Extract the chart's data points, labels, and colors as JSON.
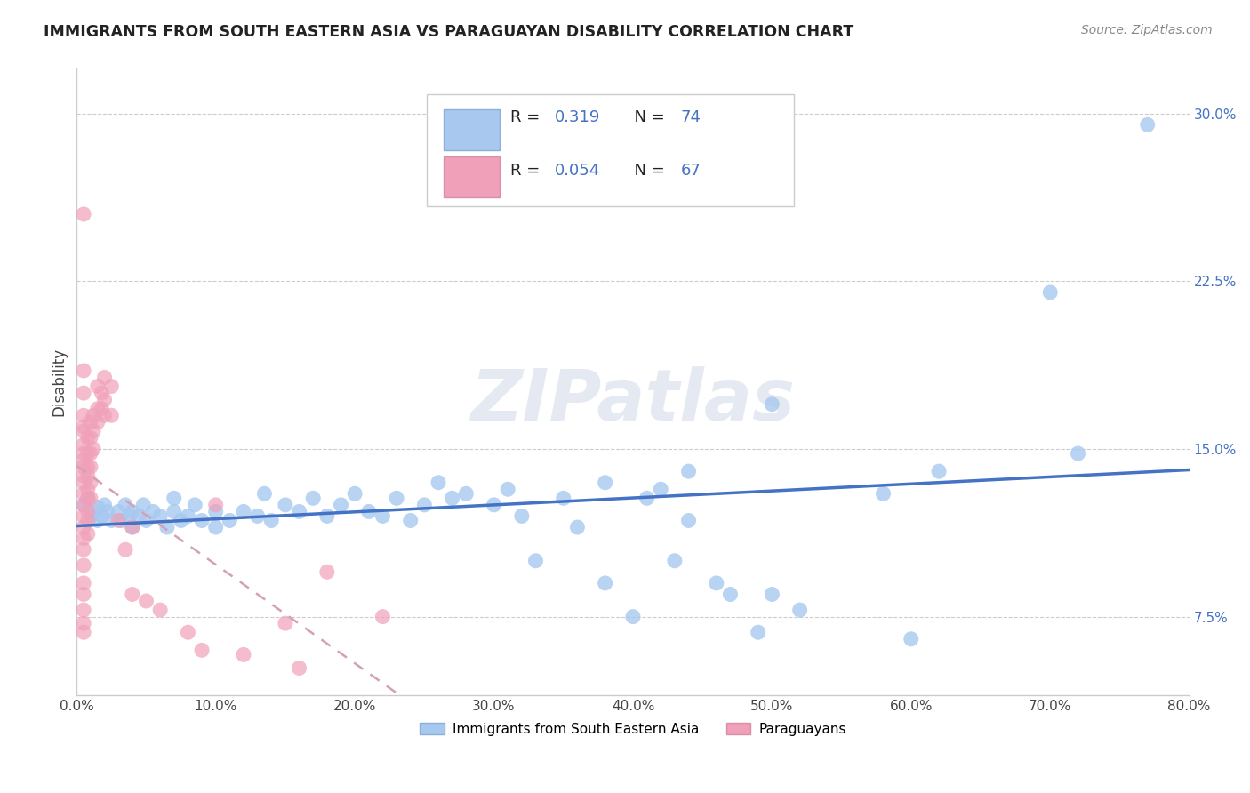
{
  "title": "IMMIGRANTS FROM SOUTH EASTERN ASIA VS PARAGUAYAN DISABILITY CORRELATION CHART",
  "source": "Source: ZipAtlas.com",
  "ylabel": "Disability",
  "xlim": [
    0.0,
    0.8
  ],
  "ylim": [
    0.04,
    0.32
  ],
  "xtick_vals": [
    0.0,
    0.1,
    0.2,
    0.3,
    0.4,
    0.5,
    0.6,
    0.7,
    0.8
  ],
  "xtick_labels": [
    "0.0%",
    "10.0%",
    "20.0%",
    "30.0%",
    "40.0%",
    "50.0%",
    "60.0%",
    "70.0%",
    "80.0%"
  ],
  "ytick_vals": [
    0.075,
    0.15,
    0.225,
    0.3
  ],
  "ytick_labels": [
    "7.5%",
    "15.0%",
    "22.5%",
    "30.0%"
  ],
  "grid_color": "#cccccc",
  "background_color": "#ffffff",
  "watermark": "ZIPatlas",
  "blue_R": 0.319,
  "blue_N": 74,
  "pink_R": 0.054,
  "pink_N": 67,
  "blue_scatter": [
    [
      0.005,
      0.125
    ],
    [
      0.008,
      0.128
    ],
    [
      0.01,
      0.12
    ],
    [
      0.012,
      0.122
    ],
    [
      0.015,
      0.118
    ],
    [
      0.015,
      0.124
    ],
    [
      0.018,
      0.12
    ],
    [
      0.02,
      0.125
    ],
    [
      0.022,
      0.122
    ],
    [
      0.025,
      0.118
    ],
    [
      0.03,
      0.122
    ],
    [
      0.032,
      0.118
    ],
    [
      0.035,
      0.125
    ],
    [
      0.038,
      0.12
    ],
    [
      0.04,
      0.122
    ],
    [
      0.04,
      0.115
    ],
    [
      0.045,
      0.12
    ],
    [
      0.048,
      0.125
    ],
    [
      0.05,
      0.118
    ],
    [
      0.055,
      0.122
    ],
    [
      0.06,
      0.12
    ],
    [
      0.065,
      0.115
    ],
    [
      0.07,
      0.122
    ],
    [
      0.07,
      0.128
    ],
    [
      0.075,
      0.118
    ],
    [
      0.08,
      0.12
    ],
    [
      0.085,
      0.125
    ],
    [
      0.09,
      0.118
    ],
    [
      0.1,
      0.122
    ],
    [
      0.1,
      0.115
    ],
    [
      0.11,
      0.118
    ],
    [
      0.12,
      0.122
    ],
    [
      0.13,
      0.12
    ],
    [
      0.135,
      0.13
    ],
    [
      0.14,
      0.118
    ],
    [
      0.15,
      0.125
    ],
    [
      0.16,
      0.122
    ],
    [
      0.17,
      0.128
    ],
    [
      0.18,
      0.12
    ],
    [
      0.19,
      0.125
    ],
    [
      0.2,
      0.13
    ],
    [
      0.21,
      0.122
    ],
    [
      0.22,
      0.12
    ],
    [
      0.23,
      0.128
    ],
    [
      0.24,
      0.118
    ],
    [
      0.25,
      0.125
    ],
    [
      0.26,
      0.135
    ],
    [
      0.27,
      0.128
    ],
    [
      0.28,
      0.13
    ],
    [
      0.3,
      0.125
    ],
    [
      0.31,
      0.132
    ],
    [
      0.32,
      0.12
    ],
    [
      0.33,
      0.1
    ],
    [
      0.35,
      0.128
    ],
    [
      0.36,
      0.115
    ],
    [
      0.38,
      0.135
    ],
    [
      0.38,
      0.09
    ],
    [
      0.4,
      0.075
    ],
    [
      0.41,
      0.128
    ],
    [
      0.42,
      0.132
    ],
    [
      0.43,
      0.1
    ],
    [
      0.44,
      0.14
    ],
    [
      0.44,
      0.118
    ],
    [
      0.46,
      0.09
    ],
    [
      0.47,
      0.085
    ],
    [
      0.49,
      0.068
    ],
    [
      0.5,
      0.17
    ],
    [
      0.5,
      0.085
    ],
    [
      0.52,
      0.078
    ],
    [
      0.58,
      0.13
    ],
    [
      0.6,
      0.065
    ],
    [
      0.62,
      0.14
    ],
    [
      0.7,
      0.22
    ],
    [
      0.72,
      0.148
    ],
    [
      0.77,
      0.295
    ]
  ],
  "pink_scatter": [
    [
      0.005,
      0.255
    ],
    [
      0.005,
      0.185
    ],
    [
      0.005,
      0.175
    ],
    [
      0.005,
      0.165
    ],
    [
      0.005,
      0.16
    ],
    [
      0.005,
      0.158
    ],
    [
      0.005,
      0.152
    ],
    [
      0.005,
      0.148
    ],
    [
      0.005,
      0.145
    ],
    [
      0.005,
      0.142
    ],
    [
      0.005,
      0.138
    ],
    [
      0.005,
      0.135
    ],
    [
      0.005,
      0.13
    ],
    [
      0.005,
      0.125
    ],
    [
      0.005,
      0.12
    ],
    [
      0.005,
      0.115
    ],
    [
      0.005,
      0.11
    ],
    [
      0.005,
      0.105
    ],
    [
      0.005,
      0.098
    ],
    [
      0.005,
      0.09
    ],
    [
      0.005,
      0.085
    ],
    [
      0.005,
      0.078
    ],
    [
      0.005,
      0.072
    ],
    [
      0.005,
      0.068
    ],
    [
      0.008,
      0.155
    ],
    [
      0.008,
      0.148
    ],
    [
      0.008,
      0.142
    ],
    [
      0.008,
      0.138
    ],
    [
      0.008,
      0.132
    ],
    [
      0.008,
      0.128
    ],
    [
      0.008,
      0.122
    ],
    [
      0.008,
      0.118
    ],
    [
      0.008,
      0.112
    ],
    [
      0.01,
      0.162
    ],
    [
      0.01,
      0.155
    ],
    [
      0.01,
      0.148
    ],
    [
      0.01,
      0.142
    ],
    [
      0.01,
      0.135
    ],
    [
      0.01,
      0.128
    ],
    [
      0.012,
      0.165
    ],
    [
      0.012,
      0.158
    ],
    [
      0.012,
      0.15
    ],
    [
      0.015,
      0.178
    ],
    [
      0.015,
      0.168
    ],
    [
      0.015,
      0.162
    ],
    [
      0.018,
      0.175
    ],
    [
      0.018,
      0.168
    ],
    [
      0.02,
      0.182
    ],
    [
      0.02,
      0.172
    ],
    [
      0.02,
      0.165
    ],
    [
      0.025,
      0.178
    ],
    [
      0.025,
      0.165
    ],
    [
      0.03,
      0.118
    ],
    [
      0.035,
      0.105
    ],
    [
      0.04,
      0.115
    ],
    [
      0.04,
      0.085
    ],
    [
      0.05,
      0.082
    ],
    [
      0.06,
      0.078
    ],
    [
      0.08,
      0.068
    ],
    [
      0.09,
      0.06
    ],
    [
      0.1,
      0.125
    ],
    [
      0.12,
      0.058
    ],
    [
      0.15,
      0.072
    ],
    [
      0.16,
      0.052
    ],
    [
      0.18,
      0.095
    ],
    [
      0.22,
      0.075
    ]
  ],
  "blue_line_color": "#4472c4",
  "pink_line_color": "#d4a0b8",
  "blue_scatter_color": "#a8c8f0",
  "pink_scatter_color": "#f0a0b8",
  "legend_label_blue": "Immigrants from South Eastern Asia",
  "legend_label_pink": "Paraguayans"
}
